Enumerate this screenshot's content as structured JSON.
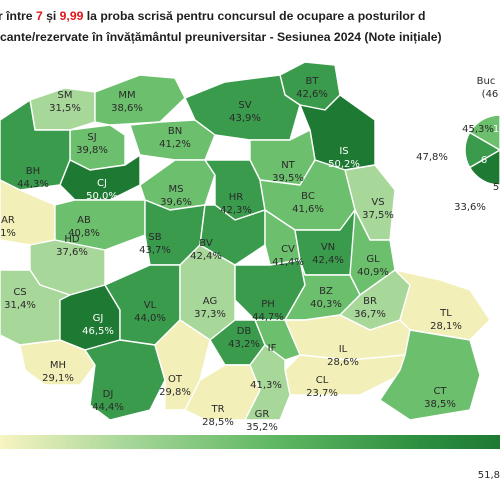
{
  "title": {
    "line1_a": "r între ",
    "line1_low": "7",
    "line1_b": " și ",
    "line1_high": "9,99",
    "line1_c": " la proba scrisă pentru concursul de ocupare a posturilor d",
    "line2": "cante/rezervate în învățământul preuniversitar - Sesiunea 2024 (Note inițiale)"
  },
  "colors": {
    "lightest": "#f2f0b8",
    "light": "#a8d79a",
    "mid": "#6cbf6c",
    "dark": "#3a9b4c",
    "darkest": "#1e7a33"
  },
  "counties": [
    {
      "code": "SM",
      "value": "31,5%"
    },
    {
      "code": "MM",
      "value": "38,6%"
    },
    {
      "code": "BT",
      "value": "42,6%"
    },
    {
      "code": "SJ",
      "value": "39,8%"
    },
    {
      "code": "SV",
      "value": "43,9%"
    },
    {
      "code": "BN",
      "value": "41,2%"
    },
    {
      "code": "IS",
      "value": "50,2%"
    },
    {
      "code": "BH",
      "value": "44,3%"
    },
    {
      "code": "CJ",
      "value": "50,0%"
    },
    {
      "code": "NT",
      "value": "39,5%"
    },
    {
      "code": "MS",
      "value": "39,6%"
    },
    {
      "code": "HR",
      "value": "42,3%"
    },
    {
      "code": "VS",
      "value": "37,5%"
    },
    {
      "code": "AR",
      "value": "1%"
    },
    {
      "code": "AB",
      "value": "40,8%"
    },
    {
      "code": "BC",
      "value": "41,6%"
    },
    {
      "code": "HD",
      "value": "37,6%"
    },
    {
      "code": "SB",
      "value": "43,7%"
    },
    {
      "code": "BV",
      "value": "42,4%"
    },
    {
      "code": "CV",
      "value": "41,4%"
    },
    {
      "code": "VN",
      "value": "42,4%"
    },
    {
      "code": "GL",
      "value": "40,9%"
    },
    {
      "code": "CS",
      "value": "31,4%"
    },
    {
      "code": "GJ",
      "value": "46,5%"
    },
    {
      "code": "VL",
      "value": "44,0%"
    },
    {
      "code": "AG",
      "value": "37,3%"
    },
    {
      "code": "PH",
      "value": "44,7%"
    },
    {
      "code": "BZ",
      "value": "40,3%"
    },
    {
      "code": "BR",
      "value": "36,7%"
    },
    {
      "code": "TL",
      "value": "28,1%"
    },
    {
      "code": "DB",
      "value": "43,2%"
    },
    {
      "code": "MH",
      "value": "29,1%"
    },
    {
      "code": "IL",
      "value": "28,6%"
    },
    {
      "code": "DJ",
      "value": "44,4%"
    },
    {
      "code": "OT",
      "value": "29,8%"
    },
    {
      "code": "TR",
      "value": "28,5%"
    },
    {
      "code": "IF",
      "value": ""
    },
    {
      "code": "CL",
      "value": "23,7%"
    },
    {
      "code": "CT",
      "value": "38,5%"
    },
    {
      "code": "GR",
      "value": "35,2%"
    },
    {
      "code": "",
      "value": "41,3%"
    }
  ],
  "bucharest": {
    "label": "Buc",
    "label_value": "(46",
    "sectors": [
      "45,3%",
      "1",
      "47,8%",
      "6",
      "5",
      "33,6%"
    ]
  },
  "legend": {
    "max_label": "51,8"
  }
}
